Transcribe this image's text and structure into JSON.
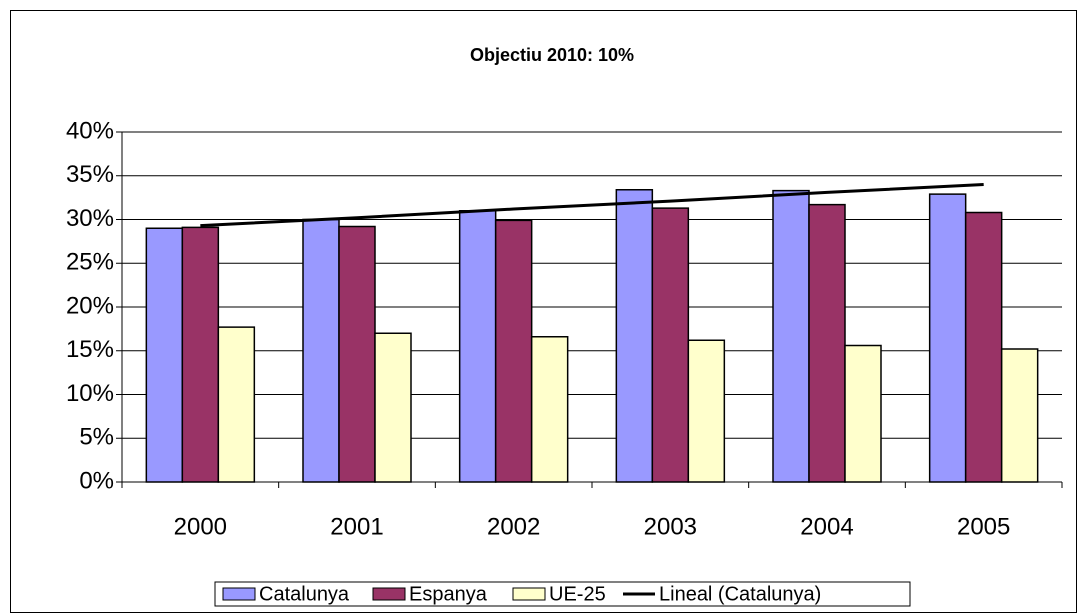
{
  "chart_data": {
    "type": "bar",
    "title": "Objectiu 2010: 10%",
    "categories": [
      "2000",
      "2001",
      "2002",
      "2003",
      "2004",
      "2005"
    ],
    "series": [
      {
        "name": "Catalunya",
        "color": "#9999ff",
        "values": [
          29.0,
          30.0,
          31.0,
          33.4,
          33.3,
          32.9
        ]
      },
      {
        "name": "Espanya",
        "color": "#993366",
        "values": [
          29.1,
          29.2,
          29.9,
          31.3,
          31.7,
          30.8
        ]
      },
      {
        "name": "UE-25",
        "color": "#ffffcc",
        "values": [
          17.7,
          17.0,
          16.6,
          16.2,
          15.6,
          15.2
        ]
      },
      {
        "name": "Lineal (Catalunya)",
        "color": "#000000",
        "type": "line",
        "values": [
          29.3,
          30.2,
          31.2,
          32.1,
          33.1,
          34.0
        ]
      }
    ],
    "ylim": [
      0,
      40
    ],
    "yticks": [
      {
        "value": 0,
        "label": "0%"
      },
      {
        "value": 5,
        "label": "5%"
      },
      {
        "value": 10,
        "label": "10%"
      },
      {
        "value": 15,
        "label": "15%"
      },
      {
        "value": 20,
        "label": "20%"
      },
      {
        "value": 25,
        "label": "25%"
      },
      {
        "value": 30,
        "label": "30%"
      },
      {
        "value": 35,
        "label": "35%"
      },
      {
        "value": 40,
        "label": "40%"
      }
    ],
    "grid": true,
    "legend": "bottom"
  }
}
